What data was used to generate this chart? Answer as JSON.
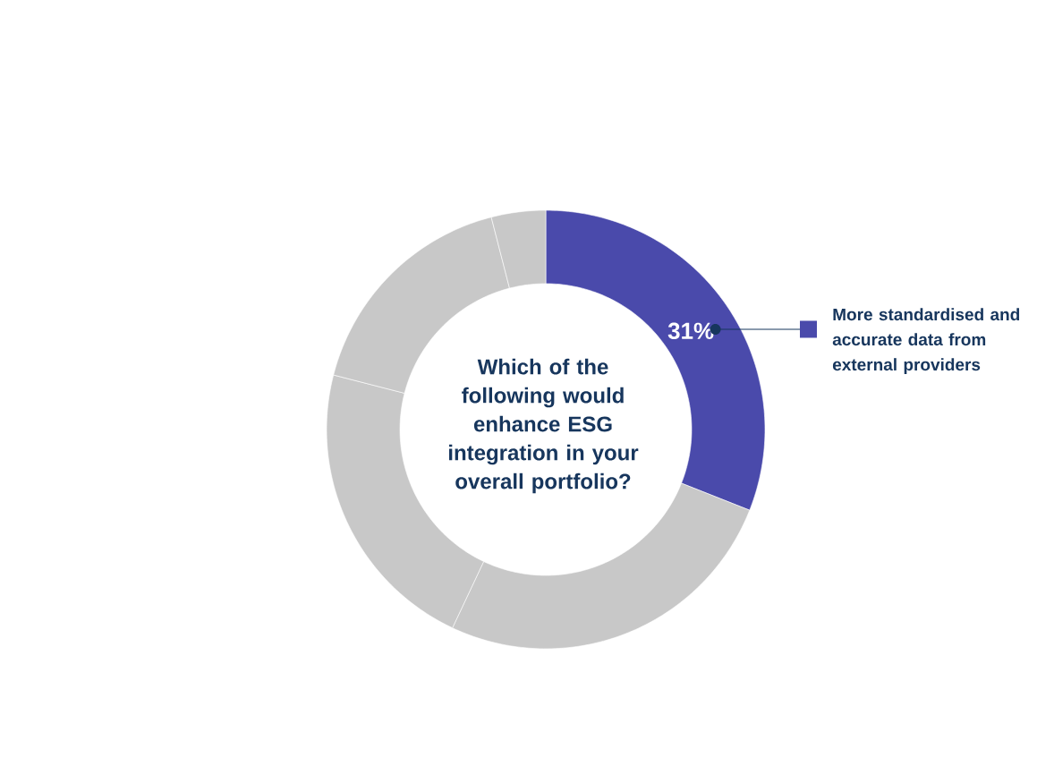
{
  "chart_data": {
    "type": "donut",
    "title": "Which of the following would enhance ESG integration in your overall portfolio?",
    "categories": [
      "More standardised and accurate data from external providers",
      null,
      null,
      null,
      null
    ],
    "values": [
      31,
      26,
      22,
      17,
      4
    ],
    "colors": [
      "#4a4aab",
      "#c8c8c8",
      "#c8c8c8",
      "#c8c8c8",
      "#c8c8c8"
    ],
    "value_labels": [
      "31%",
      null,
      null,
      null,
      null
    ],
    "legend": "right"
  }
}
